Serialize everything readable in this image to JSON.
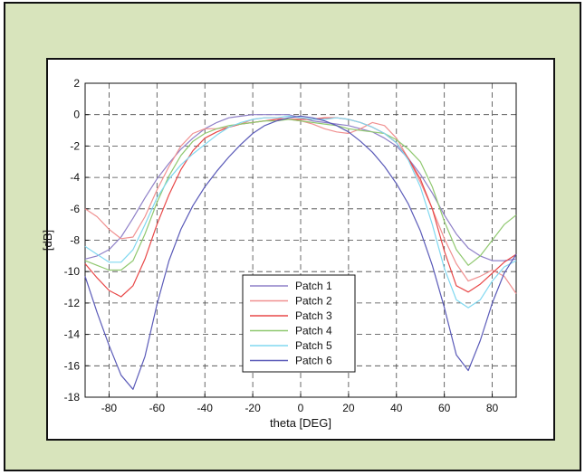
{
  "chart_data": {
    "type": "line",
    "title": "",
    "xlabel": "theta [DEG]",
    "ylabel": "[dB]",
    "xlim": [
      -90,
      90
    ],
    "ylim": [
      -18,
      2
    ],
    "xticks": [
      -80,
      -60,
      -40,
      -20,
      0,
      20,
      40,
      60,
      80
    ],
    "yticks": [
      2,
      0,
      -2,
      -4,
      -6,
      -8,
      -10,
      -12,
      -14,
      -16,
      -18
    ],
    "grid": true,
    "legend_position": "bottom-center",
    "series": [
      {
        "name": "Patch 1",
        "color": "#8f80c8",
        "x": [
          -90,
          -85,
          -80,
          -75,
          -70,
          -65,
          -60,
          -55,
          -50,
          -45,
          -40,
          -35,
          -30,
          -25,
          -20,
          -15,
          -10,
          -5,
          0,
          5,
          10,
          15,
          20,
          25,
          30,
          35,
          40,
          45,
          50,
          55,
          60,
          65,
          70,
          75,
          80,
          85,
          90
        ],
        "y": [
          -9.2,
          -9.0,
          -8.6,
          -7.8,
          -6.6,
          -5.3,
          -4.1,
          -3.1,
          -2.2,
          -1.5,
          -0.9,
          -0.5,
          -0.2,
          -0.1,
          0.0,
          0.0,
          0.0,
          0.0,
          -0.2,
          -0.4,
          -0.5,
          -0.6,
          -0.7,
          -0.9,
          -1.1,
          -1.5,
          -2.0,
          -2.8,
          -3.8,
          -5.0,
          -6.4,
          -7.6,
          -8.5,
          -9.0,
          -9.3,
          -9.3,
          -9.2
        ]
      },
      {
        "name": "Patch 2",
        "color": "#f09090",
        "x": [
          -90,
          -85,
          -80,
          -75,
          -70,
          -65,
          -60,
          -55,
          -50,
          -45,
          -40,
          -35,
          -30,
          -25,
          -20,
          -15,
          -10,
          -5,
          0,
          5,
          10,
          15,
          20,
          25,
          30,
          35,
          40,
          45,
          50,
          55,
          60,
          65,
          70,
          75,
          80,
          85,
          90
        ],
        "y": [
          -6.0,
          -6.5,
          -7.3,
          -7.9,
          -7.8,
          -6.5,
          -4.8,
          -3.3,
          -2.0,
          -1.2,
          -0.9,
          -0.9,
          -0.8,
          -0.6,
          -0.3,
          -0.2,
          -0.2,
          -0.3,
          -0.4,
          -0.6,
          -0.9,
          -1.1,
          -1.2,
          -0.9,
          -0.5,
          -0.7,
          -1.5,
          -2.8,
          -4.3,
          -6.0,
          -7.9,
          -9.5,
          -10.6,
          -10.3,
          -9.9,
          -10.3,
          -11.4
        ]
      },
      {
        "name": "Patch 3",
        "color": "#e84848",
        "x": [
          -90,
          -85,
          -80,
          -75,
          -70,
          -65,
          -60,
          -55,
          -50,
          -45,
          -40,
          -35,
          -30,
          -25,
          -20,
          -15,
          -10,
          -5,
          0,
          5,
          10,
          15,
          20,
          25,
          30,
          35,
          40,
          45,
          50,
          55,
          60,
          65,
          70,
          75,
          80,
          85,
          90
        ],
        "y": [
          -9.5,
          -10.4,
          -11.2,
          -11.6,
          -10.9,
          -9.2,
          -7.0,
          -5.1,
          -3.5,
          -2.3,
          -1.5,
          -1.1,
          -0.8,
          -0.6,
          -0.5,
          -0.4,
          -0.3,
          -0.3,
          -0.3,
          -0.3,
          -0.2,
          -0.2,
          -0.3,
          -0.5,
          -0.8,
          -1.2,
          -1.8,
          -2.8,
          -4.1,
          -6.0,
          -8.7,
          -10.9,
          -11.3,
          -10.8,
          -10.1,
          -9.4,
          -8.9
        ]
      },
      {
        "name": "Patch 4",
        "color": "#90c870",
        "x": [
          -90,
          -85,
          -80,
          -75,
          -70,
          -65,
          -60,
          -55,
          -50,
          -45,
          -40,
          -35,
          -30,
          -25,
          -20,
          -15,
          -10,
          -5,
          0,
          5,
          10,
          15,
          20,
          25,
          30,
          35,
          40,
          45,
          50,
          55,
          60,
          65,
          70,
          75,
          80,
          85,
          90
        ],
        "y": [
          -9.3,
          -9.6,
          -9.9,
          -9.9,
          -9.3,
          -7.6,
          -5.6,
          -3.9,
          -2.6,
          -1.7,
          -1.2,
          -0.9,
          -0.7,
          -0.6,
          -0.5,
          -0.4,
          -0.4,
          -0.3,
          -0.4,
          -0.5,
          -0.6,
          -0.7,
          -0.9,
          -1.0,
          -1.1,
          -1.2,
          -1.6,
          -2.2,
          -3.0,
          -4.6,
          -6.8,
          -8.6,
          -9.6,
          -9.0,
          -8.0,
          -7.0,
          -6.4
        ]
      },
      {
        "name": "Patch 5",
        "color": "#80d8f0",
        "x": [
          -90,
          -85,
          -80,
          -75,
          -70,
          -65,
          -60,
          -55,
          -50,
          -45,
          -40,
          -35,
          -30,
          -25,
          -20,
          -15,
          -10,
          -5,
          0,
          5,
          10,
          15,
          20,
          25,
          30,
          35,
          40,
          45,
          50,
          55,
          60,
          65,
          70,
          75,
          80,
          85,
          90
        ],
        "y": [
          -8.4,
          -8.9,
          -9.4,
          -9.4,
          -8.6,
          -7.0,
          -5.3,
          -4.1,
          -3.2,
          -2.5,
          -1.9,
          -1.3,
          -0.8,
          -0.5,
          -0.3,
          -0.2,
          -0.2,
          -0.1,
          -0.2,
          -0.3,
          -0.3,
          -0.2,
          -0.3,
          -0.5,
          -0.8,
          -1.2,
          -1.8,
          -2.9,
          -4.6,
          -7.0,
          -9.8,
          -11.8,
          -12.3,
          -11.8,
          -10.6,
          -9.7,
          -9.3
        ]
      },
      {
        "name": "Patch 6",
        "color": "#5a5ab8",
        "x": [
          -90,
          -85,
          -80,
          -75,
          -70,
          -65,
          -60,
          -55,
          -50,
          -45,
          -40,
          -35,
          -30,
          -25,
          -20,
          -15,
          -10,
          -5,
          0,
          5,
          10,
          15,
          20,
          25,
          30,
          35,
          40,
          45,
          50,
          55,
          60,
          65,
          70,
          75,
          80,
          85,
          90
        ],
        "y": [
          -10.3,
          -12.6,
          -14.7,
          -16.6,
          -17.5,
          -15.4,
          -12.1,
          -9.3,
          -7.3,
          -5.8,
          -4.6,
          -3.6,
          -2.7,
          -1.9,
          -1.2,
          -0.7,
          -0.4,
          -0.2,
          -0.1,
          -0.2,
          -0.4,
          -0.7,
          -1.1,
          -1.7,
          -2.4,
          -3.3,
          -4.4,
          -5.7,
          -7.4,
          -9.6,
          -12.3,
          -15.3,
          -16.3,
          -14.4,
          -12.0,
          -10.1,
          -8.9
        ]
      }
    ]
  }
}
